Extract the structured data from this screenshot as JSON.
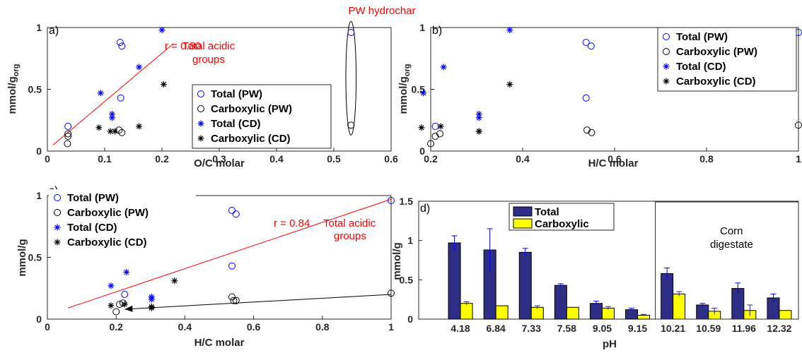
{
  "chart_data": [
    {
      "id": "a",
      "type": "scatter",
      "panel_label": "a)",
      "xlabel": "O/C molar",
      "ylabel": "mmol/g",
      "ylabel_sub": "org",
      "xlim": [
        0,
        0.6
      ],
      "ylim": [
        0,
        1
      ],
      "xticks": [
        "0",
        "0.1",
        "0.2",
        "0.3",
        "0.4",
        "0.5",
        "0.6"
      ],
      "xtick_values": [
        0,
        0.1,
        0.2,
        0.3,
        0.4,
        0.5,
        0.6
      ],
      "yticks": [
        "0",
        "0.5",
        "1"
      ],
      "ytick_values": [
        0,
        0.5,
        1
      ],
      "legend_position": "bottom-right",
      "series": [
        {
          "name": "Total (PW)",
          "marker": "circle",
          "color": "#0000ff",
          "x": [
            0.036,
            0.127,
            0.13,
            0.128,
            0.53
          ],
          "y": [
            0.2,
            0.88,
            0.85,
            0.43,
            0.96
          ]
        },
        {
          "name": "Carboxylic (PW)",
          "marker": "circle",
          "color": "#000000",
          "x": [
            0.035,
            0.036,
            0.036,
            0.125,
            0.13,
            0.53
          ],
          "y": [
            0.06,
            0.12,
            0.14,
            0.17,
            0.15,
            0.21
          ]
        },
        {
          "name": "Total (CD)",
          "marker": "asterisk",
          "color": "#0000ff",
          "x": [
            0.093,
            0.113,
            0.113,
            0.16,
            0.2
          ],
          "y": [
            0.47,
            0.3,
            0.27,
            0.68,
            0.98
          ]
        },
        {
          "name": "Carboxylic (CD)",
          "marker": "asterisk",
          "color": "#000000",
          "x": [
            0.09,
            0.11,
            0.118,
            0.16,
            0.203
          ],
          "y": [
            0.19,
            0.16,
            0.16,
            0.2,
            0.54
          ]
        }
      ],
      "annotations": [
        {
          "text": "r = 0.80",
          "color": "#ff0000"
        },
        {
          "text": "Total acidic",
          "color": "#ff0000"
        },
        {
          "text": "groups",
          "color": "#ff0000"
        },
        {
          "text": "PW hydrochar",
          "color": "#ff0000"
        }
      ],
      "fit_line": {
        "x": [
          0.01,
          0.22
        ],
        "y": [
          0.05,
          0.87
        ],
        "color": "#ff0000"
      },
      "ellipse": {
        "cx": 0.53,
        "cy": 0.59,
        "rx": 0.009,
        "ry": 0.46
      }
    },
    {
      "id": "b",
      "type": "scatter",
      "panel_label": "b)",
      "xlabel": "H/C molar",
      "ylabel": "mmol/g",
      "ylabel_sub": "org",
      "xlim": [
        0.2,
        1
      ],
      "ylim": [
        0,
        1
      ],
      "xticks": [
        "0.2",
        "0.4",
        "0.6",
        "0.8",
        "1"
      ],
      "xtick_values": [
        0.2,
        0.4,
        0.6,
        0.8,
        1
      ],
      "yticks": [
        "0",
        "0.5",
        "1"
      ],
      "ytick_values": [
        0,
        0.5,
        1
      ],
      "legend_position": "top-right",
      "series": [
        {
          "name": "Total (PW)",
          "marker": "circle",
          "color": "#0000ff",
          "x": [
            0.21,
            0.538,
            0.549,
            0.538,
            1.0
          ],
          "y": [
            0.2,
            0.88,
            0.85,
            0.43,
            0.96
          ]
        },
        {
          "name": "Carboxylic (PW)",
          "marker": "circle",
          "color": "#000000",
          "x": [
            0.2,
            0.21,
            0.22,
            0.54,
            0.55,
            1.0
          ],
          "y": [
            0.06,
            0.12,
            0.14,
            0.17,
            0.15,
            0.21
          ]
        },
        {
          "name": "Total (CD)",
          "marker": "asterisk",
          "color": "#0000ff",
          "x": [
            0.184,
            0.228,
            0.305,
            0.305,
            0.372
          ],
          "y": [
            0.47,
            0.68,
            0.3,
            0.27,
            0.98
          ]
        },
        {
          "name": "Carboxylic (CD)",
          "marker": "asterisk",
          "color": "#000000",
          "x": [
            0.18,
            0.222,
            0.305,
            0.305,
            0.372
          ],
          "y": [
            0.19,
            0.2,
            0.16,
            0.16,
            0.54
          ]
        }
      ]
    },
    {
      "id": "c",
      "type": "scatter",
      "panel_label": "c)",
      "xlabel": "H/C molar",
      "ylabel": "mmol/g",
      "xlim": [
        0,
        1
      ],
      "ylim": [
        0,
        1
      ],
      "xticks": [
        "0",
        "0.2",
        "0.4",
        "0.6",
        "0.8",
        "1"
      ],
      "xtick_values": [
        0,
        0.2,
        0.4,
        0.6,
        0.8,
        1
      ],
      "yticks": [
        "0",
        "0.5",
        "1"
      ],
      "ytick_values": [
        0,
        0.5,
        1
      ],
      "legend_position": "top-left",
      "series": [
        {
          "name": "Total (PW)",
          "marker": "circle",
          "color": "#0000ff",
          "x": [
            0.225,
            0.537,
            0.549,
            0.537,
            1.0
          ],
          "y": [
            0.2,
            0.88,
            0.85,
            0.43,
            0.96
          ]
        },
        {
          "name": "Carboxylic (PW)",
          "marker": "circle",
          "color": "#000000",
          "x": [
            0.2,
            0.21,
            0.22,
            0.537,
            0.542,
            0.549,
            1.0
          ],
          "y": [
            0.06,
            0.12,
            0.13,
            0.18,
            0.15,
            0.15,
            0.21
          ]
        },
        {
          "name": "Total (CD)",
          "marker": "asterisk",
          "color": "#0000ff",
          "x": [
            0.185,
            0.23,
            0.303,
            0.303
          ],
          "y": [
            0.27,
            0.38,
            0.18,
            0.16
          ]
        },
        {
          "name": "Carboxylic (CD)",
          "marker": "asterisk",
          "color": "#000000",
          "x": [
            0.185,
            0.225,
            0.303,
            0.303,
            0.37
          ],
          "y": [
            0.11,
            0.12,
            0.1,
            0.09,
            0.31
          ]
        }
      ],
      "annotations": [
        {
          "text": "r = 0.84",
          "color": "#ff0000"
        },
        {
          "text": "Total acidic",
          "color": "#ff0000"
        },
        {
          "text": "groups",
          "color": "#ff0000"
        }
      ],
      "fit_line": {
        "x": [
          0.06,
          1.0
        ],
        "y": [
          0.09,
          0.97
        ],
        "color": "#ff0000"
      },
      "arrow_line": {
        "x": [
          1.0,
          0.225
        ],
        "y": [
          0.2,
          0.08
        ],
        "color": "#000000"
      }
    },
    {
      "id": "d",
      "type": "bar",
      "panel_label": "d)",
      "xlabel": "pH",
      "ylabel": "mmol/g",
      "ylim": [
        0,
        1.5
      ],
      "yticks": [
        "0",
        "0.5",
        "1",
        "1.5"
      ],
      "ytick_values": [
        0,
        0.5,
        1,
        1.5
      ],
      "categories": [
        "4.18",
        "6.84",
        "7.33",
        "7.58",
        "9.05",
        "9.15",
        "10.21",
        "10.59",
        "11.96",
        "12.32"
      ],
      "legend_position": "top-left",
      "series": [
        {
          "name": "Total",
          "color": "#2e2e87",
          "values": [
            0.97,
            0.88,
            0.85,
            0.43,
            0.2,
            0.12,
            0.58,
            0.18,
            0.39,
            0.27
          ],
          "errors": [
            0.09,
            0.27,
            0.05,
            0.02,
            0.03,
            0.02,
            0.07,
            0.02,
            0.07,
            0.05
          ]
        },
        {
          "name": "Carboxylic",
          "color": "#ffff00",
          "values": [
            0.2,
            0.17,
            0.15,
            0.15,
            0.14,
            0.05,
            0.32,
            0.1,
            0.11,
            0.11
          ],
          "errors": [
            0.02,
            0.0,
            0.02,
            0.0,
            0.02,
            0.01,
            0.03,
            0.04,
            0.07,
            0.0
          ]
        }
      ],
      "annotations": [
        {
          "text": "Corn"
        },
        {
          "text": "digestate"
        }
      ],
      "box_range": {
        "from_category": 6,
        "to_category": 9
      }
    }
  ]
}
